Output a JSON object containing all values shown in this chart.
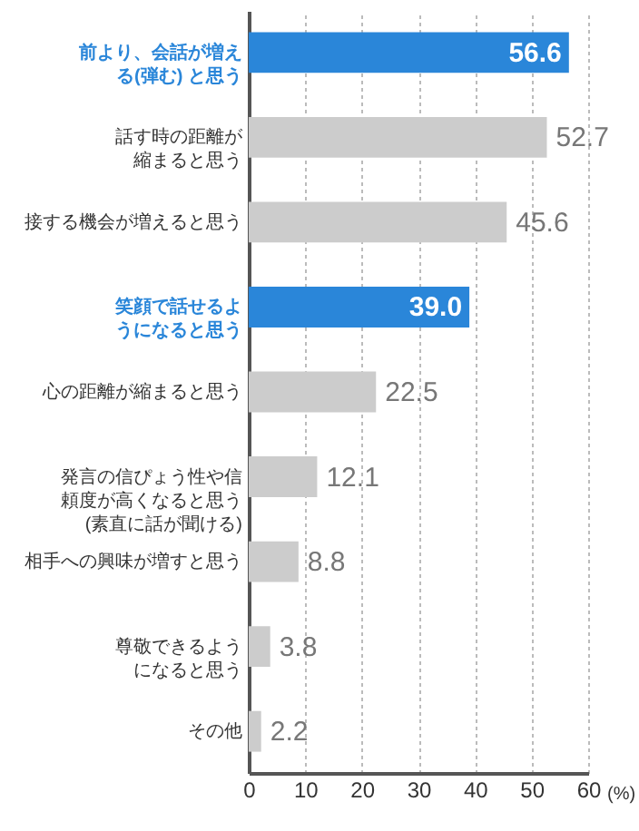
{
  "chart_data": {
    "type": "bar",
    "orientation": "horizontal",
    "xlabel": "(%)",
    "categories": [
      "前より、会話が増える(弾む) と思う",
      "話す時の距離が縮まると思う",
      "接する機会が増えると思う",
      "笑顔で話せるようになると思う",
      "心の距離が縮まると思う",
      "発言の信ぴょう性や信頼度が高くなると思う(素直に話が聞ける)",
      "相手への興味が増すと思う",
      "尊敬できるようになると思う",
      "その他"
    ],
    "values": [
      56.6,
      52.7,
      45.6,
      39.0,
      22.5,
      12.1,
      8.8,
      3.8,
      2.2
    ],
    "colors": [
      "#2a86d9",
      "#cccccc",
      "#cccccc",
      "#2a86d9",
      "#cccccc",
      "#cccccc",
      "#cccccc",
      "#cccccc",
      "#cccccc"
    ],
    "value_labels": [
      "56.6",
      "52.7",
      "45.6",
      "39.0",
      "22.5",
      "12.1",
      "8.8",
      "3.8",
      "2.2"
    ],
    "xlim": [
      0,
      60
    ],
    "xticks": [
      0,
      10,
      20,
      30,
      40,
      50,
      60
    ],
    "grid": "x"
  }
}
